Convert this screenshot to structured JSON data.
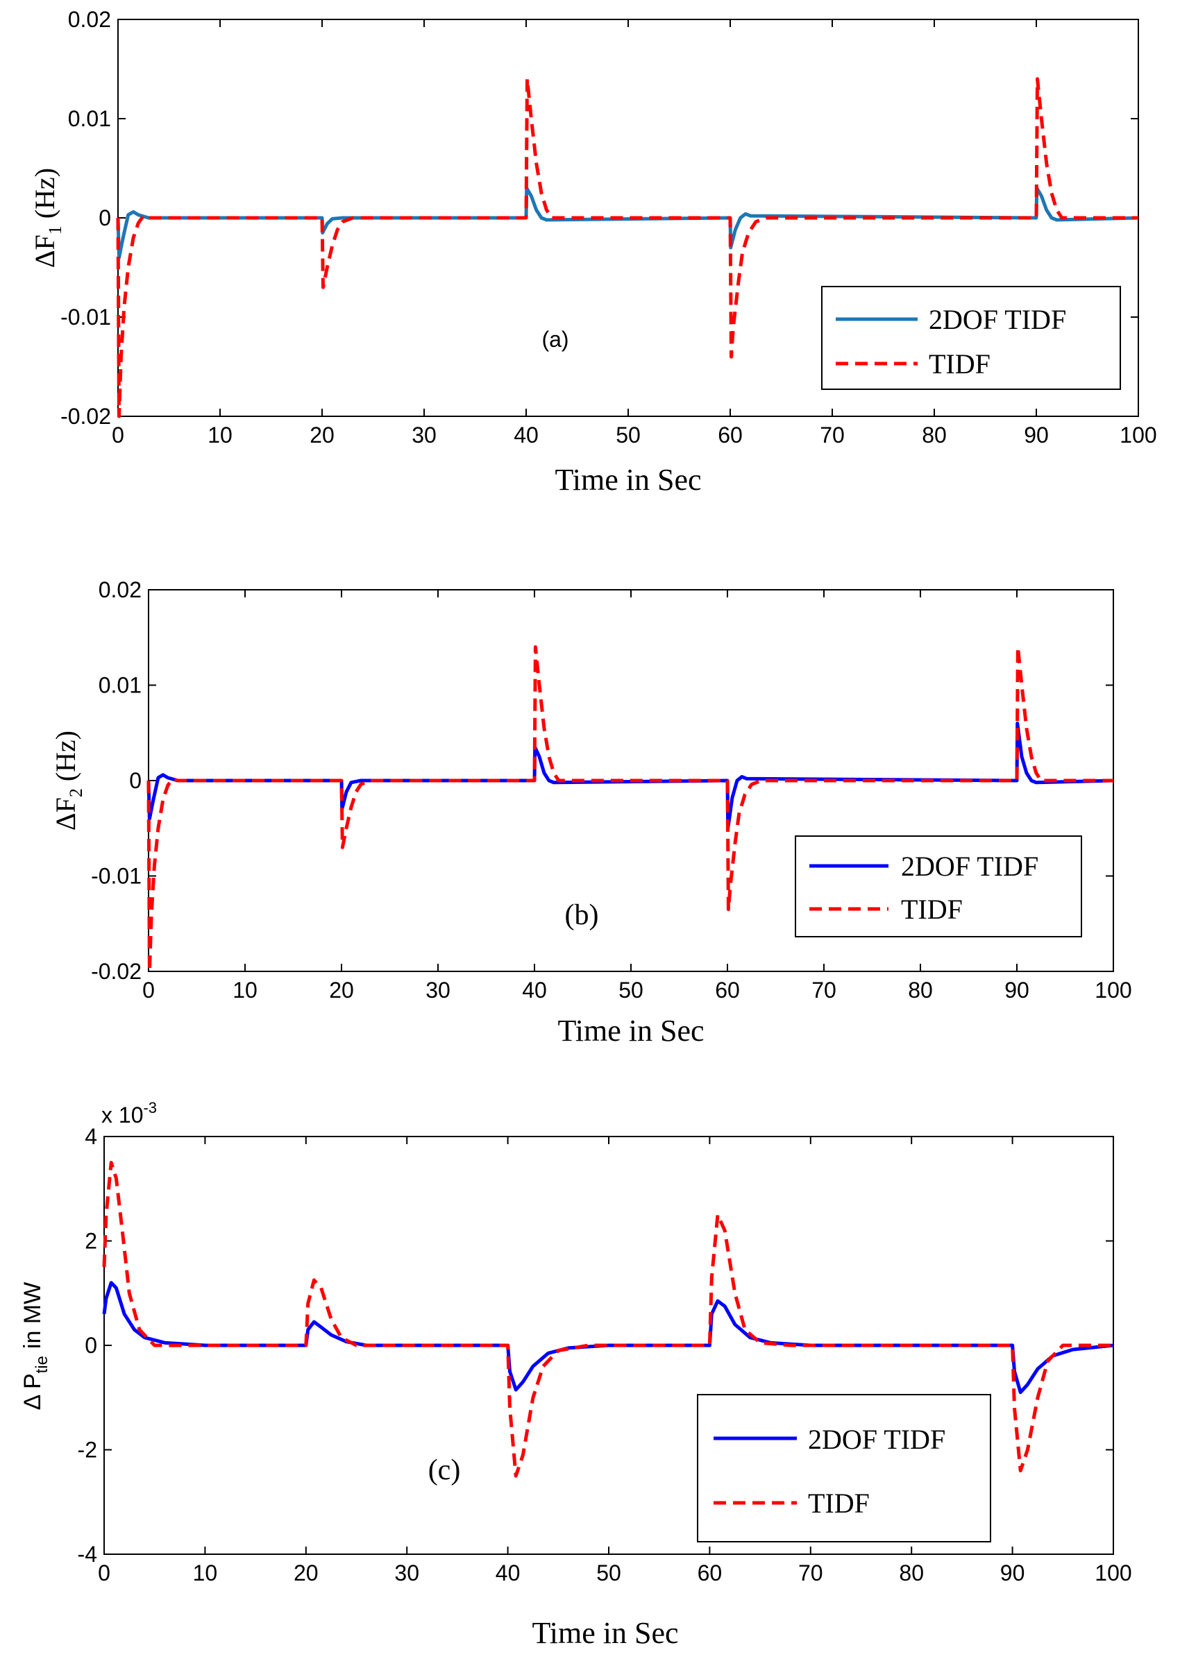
{
  "chart_data": [
    {
      "type": "line",
      "panel_label": "(a)",
      "xlabel": "Time in Sec",
      "ylabel_main": "ΔF",
      "ylabel_sub": "1",
      "ylabel_unit": "(Hz)",
      "exponent_label": "",
      "xlim": [
        0,
        100
      ],
      "ylim": [
        -0.02,
        0.02
      ],
      "xticks": [
        0,
        10,
        20,
        30,
        40,
        50,
        60,
        70,
        80,
        90,
        100
      ],
      "yticks": [
        -0.02,
        -0.01,
        0,
        0.01,
        0.02
      ],
      "xtick_labels": [
        "0",
        "10",
        "20",
        "30",
        "40",
        "50",
        "60",
        "70",
        "80",
        "90",
        "100"
      ],
      "ytick_labels": [
        "-0.02",
        "-0.01",
        "0",
        "0.01",
        "0.02"
      ],
      "legend": [
        "2DOF TIDF",
        "TIDF"
      ],
      "legend_position": "right",
      "series": [
        {
          "name": "2DOF TIDF",
          "color": "#1f77b4",
          "style": "solid",
          "x": [
            0,
            0.1,
            0.5,
            1,
            1.5,
            2,
            3,
            20,
            20.05,
            20.5,
            21,
            22,
            40,
            40.05,
            40.5,
            41,
            41.5,
            42,
            60,
            60.05,
            60.5,
            61,
            61.5,
            62,
            90,
            90.05,
            90.5,
            91,
            91.5,
            92,
            100
          ],
          "values": [
            0,
            -0.004,
            -0.002,
            0.0003,
            0.0006,
            0.0003,
            0,
            0,
            -0.0015,
            -0.0006,
            -0.0001,
            0,
            0,
            0.003,
            0.0022,
            0.0008,
            0,
            -0.0002,
            0,
            -0.003,
            -0.0012,
            0,
            0.0004,
            0.0002,
            0,
            0.003,
            0.0022,
            0.0008,
            0,
            -0.0002,
            0
          ]
        },
        {
          "name": "TIDF",
          "color": "#ff0000",
          "style": "dashed",
          "x": [
            0,
            0.1,
            0.3,
            0.6,
            1,
            1.5,
            2,
            2.5,
            3,
            20,
            20.1,
            20.5,
            21,
            21.5,
            22,
            23,
            40,
            40.1,
            40.5,
            41,
            41.5,
            42,
            42.5,
            60,
            60.1,
            60.3,
            60.8,
            61.2,
            61.8,
            62.5,
            63.5,
            90,
            90.1,
            90.5,
            91,
            91.5,
            92,
            92.5,
            100
          ],
          "values": [
            0,
            -0.02,
            -0.014,
            -0.009,
            -0.005,
            -0.002,
            -0.0005,
            0.0002,
            0,
            0,
            -0.007,
            -0.005,
            -0.0028,
            -0.0012,
            -0.0004,
            0,
            0,
            0.014,
            0.01,
            0.0055,
            0.0025,
            0.0008,
            0,
            0,
            -0.014,
            -0.011,
            -0.0065,
            -0.0035,
            -0.0015,
            -0.0004,
            0,
            0,
            0.014,
            0.01,
            0.0055,
            0.0025,
            0.0008,
            0,
            0
          ]
        }
      ]
    },
    {
      "type": "line",
      "panel_label": "(b)",
      "xlabel": "Time in Sec",
      "ylabel_main": "ΔF",
      "ylabel_sub": "2",
      "ylabel_unit": "(Hz)",
      "exponent_label": "",
      "xlim": [
        0,
        100
      ],
      "ylim": [
        -0.02,
        0.02
      ],
      "xticks": [
        0,
        10,
        20,
        30,
        40,
        50,
        60,
        70,
        80,
        90,
        100
      ],
      "yticks": [
        -0.02,
        -0.01,
        0,
        0.01,
        0.02
      ],
      "xtick_labels": [
        "0",
        "10",
        "20",
        "30",
        "40",
        "50",
        "60",
        "70",
        "80",
        "90",
        "100"
      ],
      "ytick_labels": [
        "-0.02",
        "-0.01",
        "0",
        "0.01",
        "0.02"
      ],
      "legend": [
        "2DOF TIDF",
        "TIDF"
      ],
      "legend_position": "right",
      "series": [
        {
          "name": "2DOF TIDF",
          "color": "#0000ff",
          "style": "solid",
          "x": [
            0,
            0.1,
            0.5,
            1,
            1.5,
            2,
            3,
            20,
            20.05,
            20.5,
            21,
            22,
            40,
            40.05,
            40.5,
            41,
            41.5,
            42,
            60,
            60.05,
            60.5,
            61,
            61.5,
            62,
            90,
            90.05,
            90.5,
            91,
            91.5,
            92,
            100
          ],
          "values": [
            0,
            -0.004,
            -0.002,
            0.0003,
            0.0006,
            0.0003,
            0,
            0,
            -0.003,
            -0.0012,
            -0.0002,
            0,
            0,
            0.0035,
            0.0025,
            0.0008,
            0,
            -0.0002,
            0,
            -0.005,
            -0.0018,
            0,
            0.0004,
            0.0002,
            0,
            0.006,
            0.0025,
            0.0008,
            0,
            -0.0002,
            0
          ]
        },
        {
          "name": "TIDF",
          "color": "#ff0000",
          "style": "dashed",
          "x": [
            0,
            0.1,
            0.3,
            0.6,
            1,
            1.5,
            2,
            2.5,
            3,
            20,
            20.1,
            20.5,
            21,
            21.5,
            22,
            23,
            40,
            40.1,
            40.5,
            41,
            41.5,
            42,
            42.5,
            60,
            60.1,
            60.3,
            60.8,
            61.2,
            61.8,
            62.5,
            63.5,
            90,
            90.1,
            90.5,
            91,
            91.5,
            92,
            92.5,
            100
          ],
          "values": [
            0,
            -0.02,
            -0.014,
            -0.009,
            -0.005,
            -0.002,
            -0.0005,
            0.0002,
            0,
            0,
            -0.007,
            -0.005,
            -0.0028,
            -0.0012,
            -0.0004,
            0,
            0,
            0.014,
            0.01,
            0.0055,
            0.0025,
            0.0008,
            0,
            0,
            -0.0135,
            -0.011,
            -0.0065,
            -0.0035,
            -0.0015,
            -0.0004,
            0,
            0,
            0.014,
            0.01,
            0.0055,
            0.0025,
            0.0008,
            0,
            0
          ]
        }
      ]
    },
    {
      "type": "line",
      "panel_label": "(c)",
      "xlabel": "Time in Sec",
      "ylabel_main": "Δ P",
      "ylabel_sub": "tie",
      "ylabel_unit": "in MW",
      "exponent_label": "x 10",
      "exponent_power": "-3",
      "xlim": [
        0,
        100
      ],
      "ylim": [
        -4,
        4
      ],
      "xticks": [
        0,
        10,
        20,
        30,
        40,
        50,
        60,
        70,
        80,
        90,
        100
      ],
      "yticks": [
        -4,
        -2,
        0,
        2,
        4
      ],
      "xtick_labels": [
        "0",
        "10",
        "20",
        "30",
        "40",
        "50",
        "60",
        "70",
        "80",
        "90",
        "100"
      ],
      "ytick_labels": [
        "-4",
        "-2",
        "0",
        "2",
        "4"
      ],
      "legend": [
        "2DOF TIDF",
        "TIDF"
      ],
      "legend_position": "bottom-right",
      "series": [
        {
          "name": "2DOF TIDF",
          "color": "#0000ff",
          "style": "solid",
          "x": [
            0,
            0.2,
            0.7,
            1.2,
            2,
            3,
            4,
            6,
            10,
            20,
            20.2,
            20.8,
            21.5,
            22.5,
            24,
            26,
            40,
            40.2,
            40.8,
            41.5,
            42.5,
            44,
            46,
            50,
            60,
            60.2,
            60.8,
            61.5,
            62.5,
            64,
            66,
            70,
            90,
            90.2,
            90.8,
            91.5,
            92.5,
            94,
            96,
            100
          ],
          "values": [
            0.6,
            0.9,
            1.2,
            1.1,
            0.6,
            0.3,
            0.15,
            0.05,
            0,
            0,
            0.3,
            0.45,
            0.35,
            0.2,
            0.07,
            0,
            0,
            -0.5,
            -0.85,
            -0.7,
            -0.4,
            -0.15,
            -0.05,
            0,
            0,
            0.6,
            0.85,
            0.75,
            0.4,
            0.15,
            0.05,
            0,
            0,
            -0.5,
            -0.9,
            -0.75,
            -0.45,
            -0.2,
            -0.08,
            0
          ]
        },
        {
          "name": "TIDF",
          "color": "#ff0000",
          "style": "dashed",
          "x": [
            0,
            0.2,
            0.7,
            1.2,
            1.8,
            2.5,
            3.5,
            5,
            8,
            20,
            20.2,
            20.8,
            21.5,
            22.5,
            23.5,
            25,
            40,
            40.2,
            40.8,
            41.5,
            42.5,
            43.5,
            45,
            48,
            60,
            60.2,
            60.8,
            61.5,
            62.5,
            63.5,
            65,
            68,
            90,
            90.2,
            90.8,
            91.5,
            92.5,
            93.5,
            95,
            100
          ],
          "values": [
            1.5,
            2.5,
            3.5,
            3.2,
            2.2,
            1.0,
            0.3,
            0,
            0,
            0,
            0.8,
            1.25,
            1.1,
            0.5,
            0.15,
            0,
            0,
            -1.2,
            -2.5,
            -2.1,
            -1.0,
            -0.4,
            -0.1,
            0,
            0,
            1.3,
            2.5,
            2.2,
            1.0,
            0.3,
            0.05,
            0,
            0,
            -1.2,
            -2.4,
            -2.0,
            -1.0,
            -0.3,
            0,
            0
          ]
        }
      ]
    }
  ]
}
